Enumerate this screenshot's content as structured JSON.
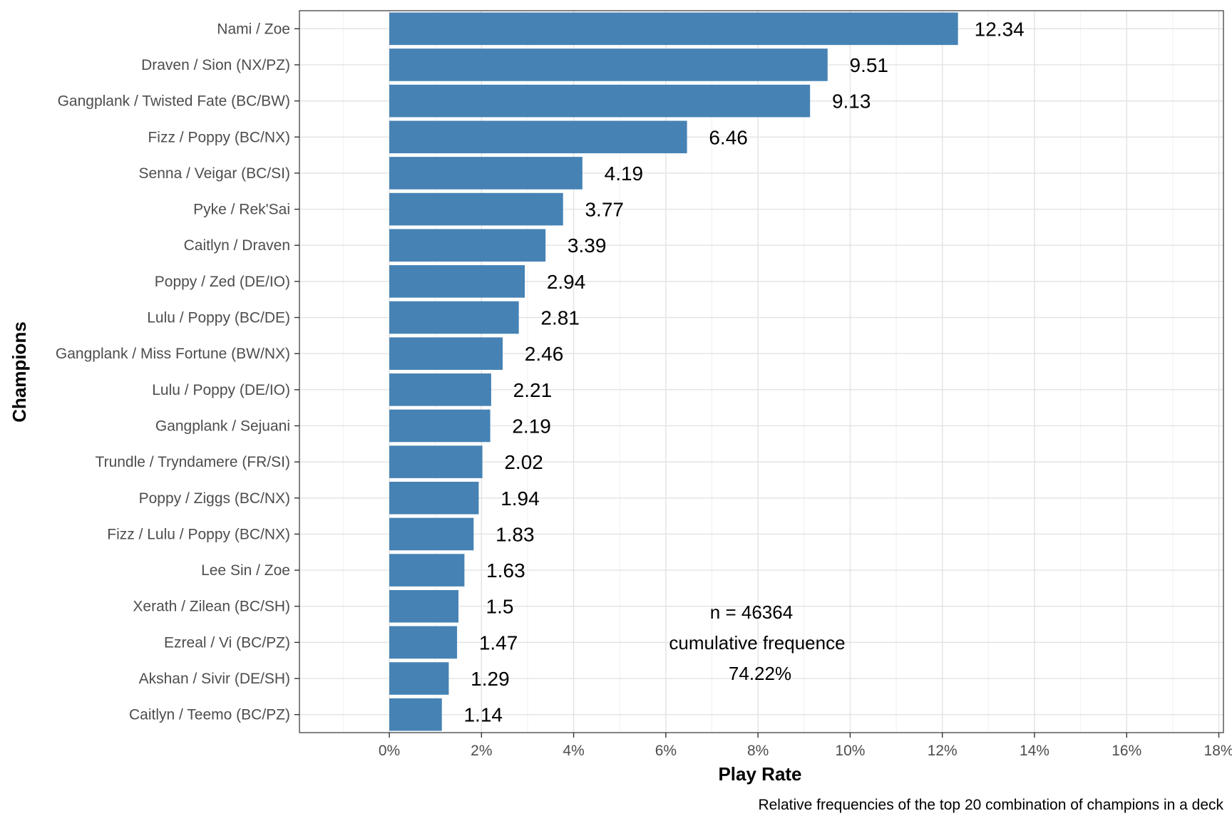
{
  "chart_data": {
    "type": "bar",
    "orientation": "horizontal",
    "categories": [
      "Nami / Zoe",
      "Draven / Sion (NX/PZ)",
      "Gangplank / Twisted Fate (BC/BW)",
      "Fizz / Poppy (BC/NX)",
      "Senna / Veigar (BC/SI)",
      "Pyke / Rek'Sai",
      "Caitlyn / Draven",
      "Poppy / Zed (DE/IO)",
      "Lulu / Poppy (BC/DE)",
      "Gangplank / Miss Fortune (BW/NX)",
      "Lulu / Poppy (DE/IO)",
      "Gangplank / Sejuani",
      "Trundle / Tryndamere (FR/SI)",
      "Poppy / Ziggs (BC/NX)",
      "Fizz / Lulu / Poppy (BC/NX)",
      "Lee Sin / Zoe",
      "Xerath / Zilean (BC/SH)",
      "Ezreal / Vi (BC/PZ)",
      "Akshan / Sivir (DE/SH)",
      "Caitlyn / Teemo (BC/PZ)"
    ],
    "values": [
      12.34,
      9.51,
      9.13,
      6.46,
      4.19,
      3.77,
      3.39,
      2.94,
      2.81,
      2.46,
      2.21,
      2.19,
      2.02,
      1.94,
      1.83,
      1.63,
      1.5,
      1.47,
      1.29,
      1.14
    ],
    "value_labels": [
      "12.34",
      "9.51",
      "9.13",
      "6.46",
      "4.19",
      "3.77",
      "3.39",
      "2.94",
      "2.81",
      "2.46",
      "2.21",
      "2.19",
      "2.02",
      "1.94",
      "1.83",
      "1.63",
      "1.5",
      "1.47",
      "1.29",
      "1.14"
    ],
    "xlabel": "Play Rate",
    "ylabel": "Champions",
    "xlim": [
      -1.95,
      18.1
    ],
    "x_ticks": [
      0,
      2,
      4,
      6,
      8,
      10,
      12,
      14,
      16,
      18
    ],
    "x_tick_labels": [
      "0%",
      "2%",
      "4%",
      "6%",
      "8%",
      "10%",
      "12%",
      "14%",
      "16%",
      "18%"
    ],
    "annotation": [
      "n = 46364",
      "cumulative frequence",
      "74.22%"
    ],
    "caption": "Relative frequencies of the top 20 combination of champions in a deck",
    "bar_color": "#4682b4",
    "grid": true,
    "legend": "none"
  }
}
